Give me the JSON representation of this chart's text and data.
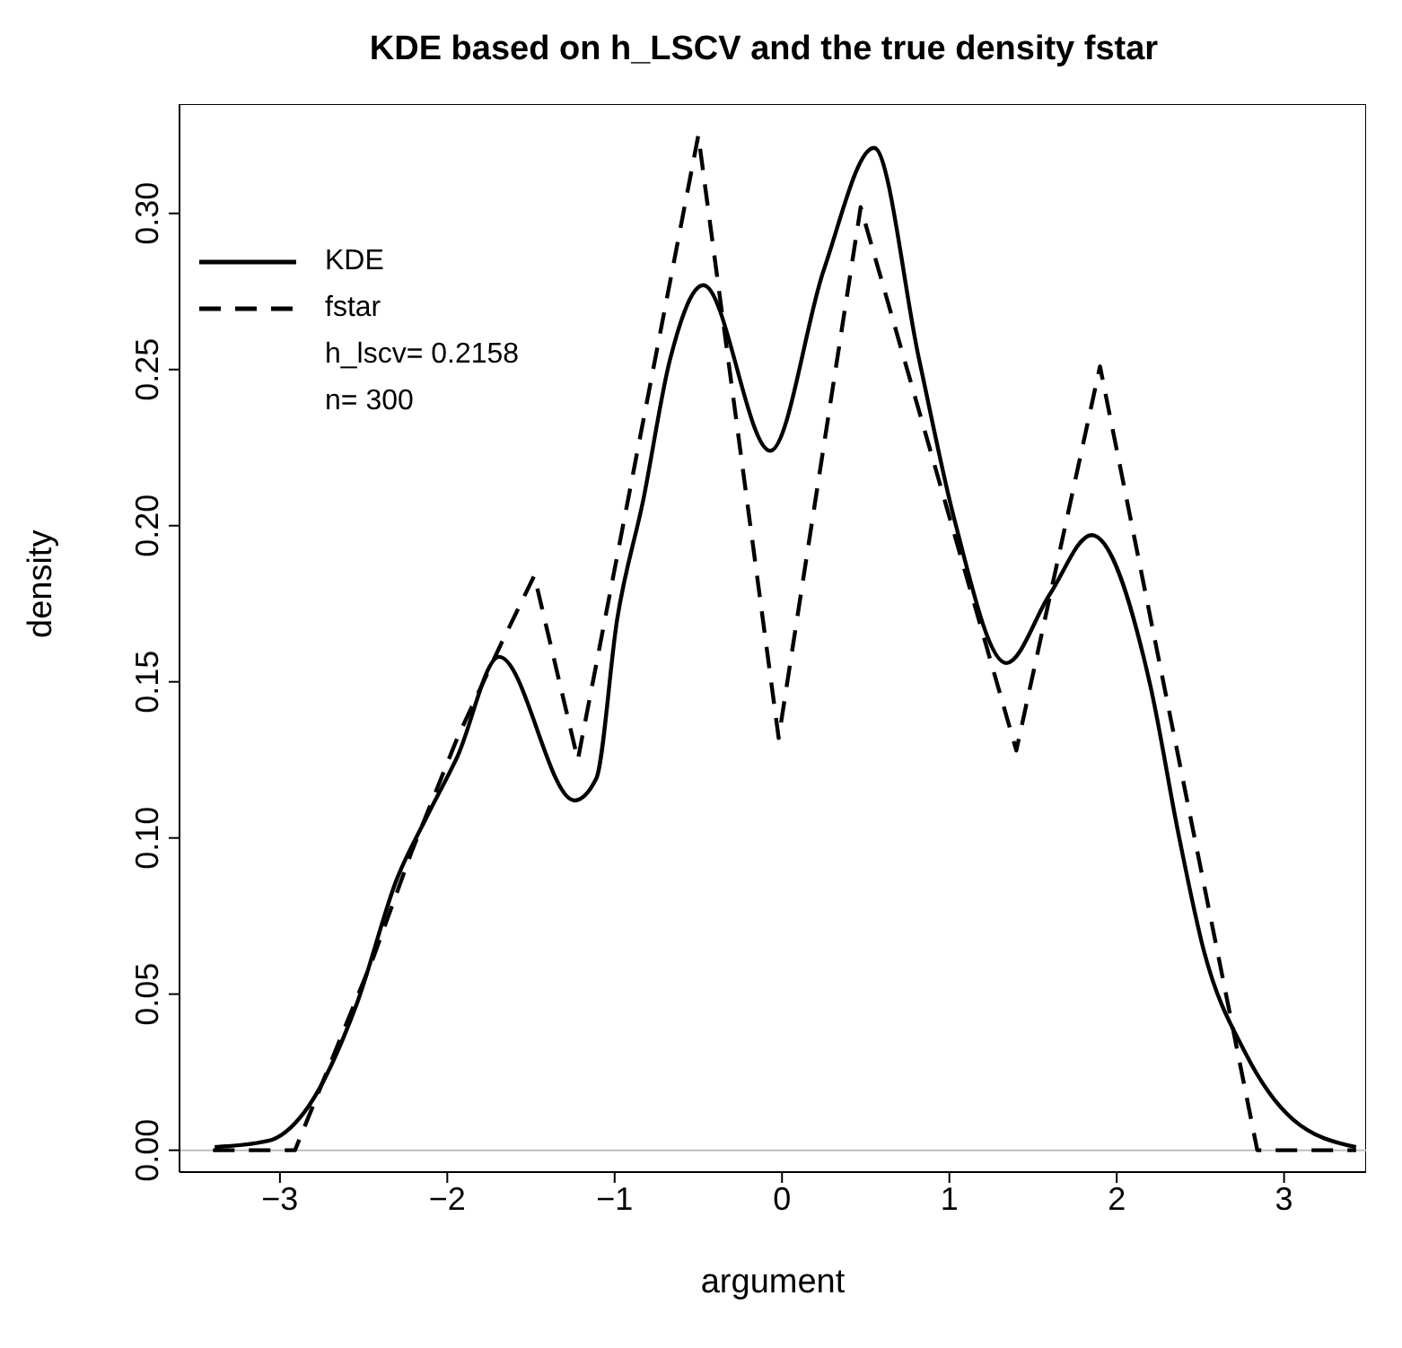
{
  "chart_data": {
    "type": "line",
    "title": "KDE based on h_LSCV and the true density fstar",
    "xlabel": "argument",
    "ylabel": "density",
    "xlim": [
      -3.6,
      3.49
    ],
    "ylim": [
      -0.007,
      0.335
    ],
    "xticks": [
      -3,
      -2,
      -1,
      0,
      1,
      2,
      3
    ],
    "yticks": [
      {
        "value": 0,
        "label": "0.00"
      },
      {
        "value": 0.05,
        "label": "0.05"
      },
      {
        "value": 0.1,
        "label": "0.10"
      },
      {
        "value": 0.15,
        "label": "0.15"
      },
      {
        "value": 0.2,
        "label": "0.20"
      },
      {
        "value": 0.25,
        "label": "0.25"
      },
      {
        "value": 0.3,
        "label": "0.30"
      }
    ],
    "grid": false,
    "legend": "top left",
    "marker": "none",
    "annotations": [
      "h_lscv= 0.2158",
      "n= 300"
    ],
    "ref_lines": [
      {
        "axis": "y",
        "value": 0,
        "color": "#bebebe"
      }
    ],
    "series": [
      {
        "name": "KDE",
        "color": "#000000",
        "line_style": "solid",
        "x": [
          -3.39,
          -3.07,
          -2.83,
          -2.54,
          -2.3,
          -2.12,
          -1.94,
          -1.69,
          -1.24,
          -1.11,
          -0.985,
          -0.83,
          -0.67,
          -0.47,
          -0.07,
          0.25,
          0.55,
          0.82,
          1.03,
          1.34,
          1.6,
          1.85,
          2.2,
          2.37,
          2.52,
          2.77,
          3.05,
          3.43
        ],
        "values": [
          0.001,
          0.003,
          0.014,
          0.047,
          0.087,
          0.107,
          0.126,
          0.158,
          0.112,
          0.119,
          0.17,
          0.208,
          0.253,
          0.277,
          0.224,
          0.282,
          0.321,
          0.253,
          0.202,
          0.156,
          0.178,
          0.197,
          0.149,
          0.101,
          0.064,
          0.031,
          0.01,
          0.001
        ]
      },
      {
        "name": "fstar",
        "color": "#000000",
        "line_style": "dashed",
        "x": [
          -3.4,
          -2.91,
          -2.44,
          -2.21,
          -1.94,
          -1.68,
          -1.48,
          -1.22,
          -0.5,
          -0.02,
          0.47,
          1.4,
          1.9,
          2.84,
          3.43
        ],
        "values": [
          0,
          0,
          0.062,
          0.096,
          0.132,
          0.162,
          0.184,
          0.125,
          0.325,
          0.132,
          0.302,
          0.128,
          0.251,
          0,
          0
        ]
      }
    ]
  }
}
